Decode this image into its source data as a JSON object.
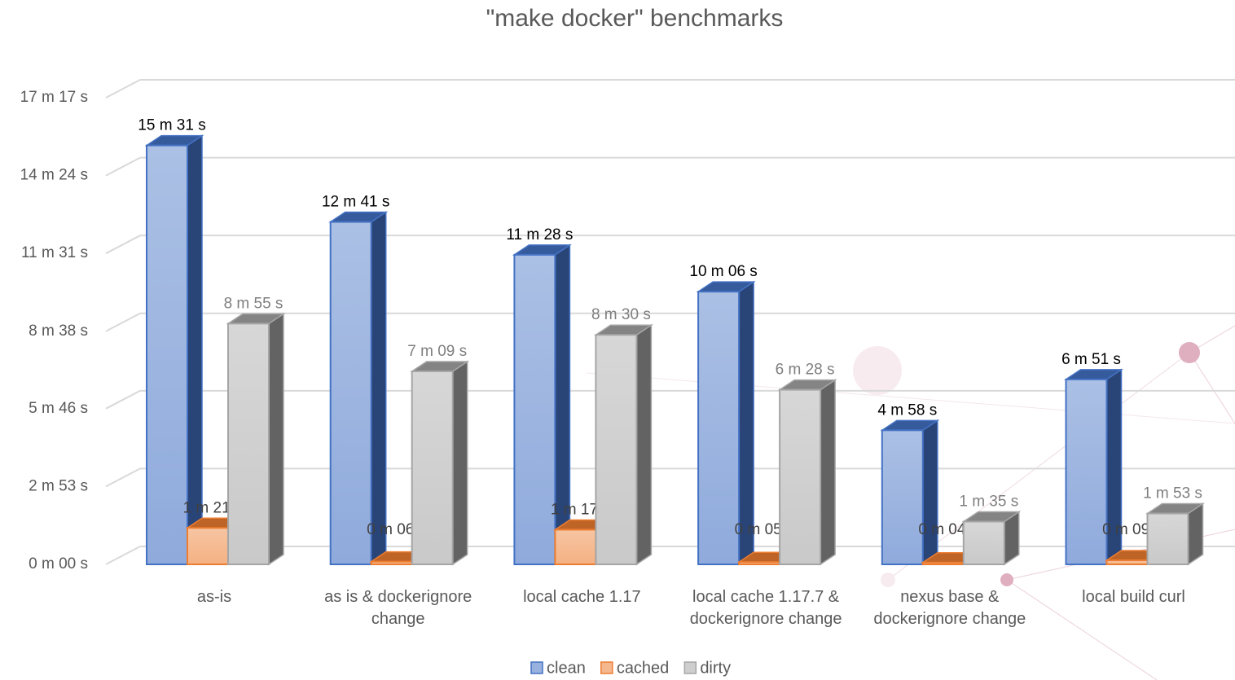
{
  "chart_data": {
    "type": "bar3d",
    "title": "\"make docker\" benchmarks",
    "categories": [
      "as-is",
      "as is & dockerignore change",
      "local cache 1.17",
      "local cache 1.17.7 & dockerignore change",
      "nexus base & dockerignore change",
      "local build curl"
    ],
    "series": [
      {
        "name": "clean",
        "color": "#4472c4",
        "values": [
          931,
          761,
          688,
          606,
          298,
          411
        ],
        "value_labels": [
          "15 m 31 s",
          "12 m 41 s",
          "11 m 28 s",
          "10 m 06 s",
          "4 m 58 s",
          "6 m 51 s"
        ]
      },
      {
        "name": "cached",
        "color": "#ed7d31",
        "values": [
          81,
          6,
          77,
          5,
          4,
          9
        ],
        "value_labels": [
          "1 m 21 s",
          "0 m 06 s",
          "1 m 17 s",
          "0 m 05 s",
          "0 m 04 s",
          "0 m 09 s"
        ]
      },
      {
        "name": "dirty",
        "color": "#a5a5a5",
        "values": [
          535,
          429,
          510,
          388,
          95,
          113
        ],
        "value_labels": [
          "8 m 55 s",
          "7 m 09 s",
          "8 m 30 s",
          "6 m 28 s",
          "1 m 35 s",
          "1 m 53 s"
        ]
      }
    ],
    "ylim": [
      0,
      1037
    ],
    "yticks": [
      {
        "value": 0,
        "label": "0 m 00 s"
      },
      {
        "value": 173,
        "label": "2 m 53 s"
      },
      {
        "value": 346,
        "label": "5 m 46 s"
      },
      {
        "value": 518,
        "label": "8 m 38 s"
      },
      {
        "value": 691,
        "label": "11 m 31 s"
      },
      {
        "value": 864,
        "label": "14 m 24 s"
      },
      {
        "value": 1037,
        "label": "17 m 17 s"
      }
    ],
    "grid": true,
    "legend": "bottom"
  }
}
